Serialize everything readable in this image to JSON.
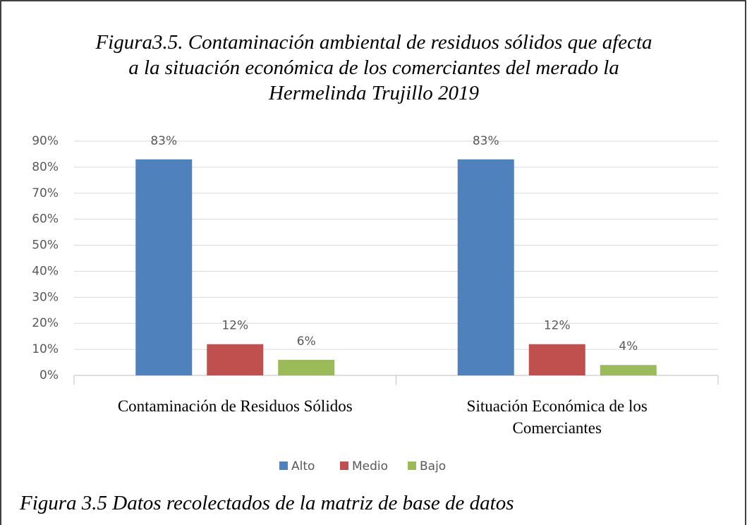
{
  "chart_data": {
    "type": "bar",
    "title": "Figura3.5. Contaminación ambiental de residuos sólidos que afecta a la situación económica de los comerciantes del merado la Hermelinda Trujillo 2019",
    "caption": "Figura 3.5 Datos recolectados de la matriz de base de datos",
    "categories": [
      "Contaminación de Residuos Sólidos",
      "Situación Económica de los Comerciantes"
    ],
    "series": [
      {
        "name": "Alto",
        "color": "#4f81bd",
        "values": [
          83,
          83
        ],
        "value_labels": [
          "83%",
          "83%"
        ]
      },
      {
        "name": "Medio",
        "color": "#c0504d",
        "values": [
          12,
          12
        ],
        "value_labels": [
          "12%",
          "12%"
        ]
      },
      {
        "name": "Bajo",
        "color": "#9bbb59",
        "values": [
          6,
          4
        ],
        "value_labels": [
          "6%",
          "4%"
        ]
      }
    ],
    "ylim": [
      0,
      90
    ],
    "yticks": [
      {
        "value": 0,
        "label": "0%"
      },
      {
        "value": 10,
        "label": "10%"
      },
      {
        "value": 20,
        "label": "20%"
      },
      {
        "value": 30,
        "label": "30%"
      },
      {
        "value": 40,
        "label": "40%"
      },
      {
        "value": 50,
        "label": "50%"
      },
      {
        "value": 60,
        "label": "60%"
      },
      {
        "value": 70,
        "label": "70%"
      },
      {
        "value": 80,
        "label": "80%"
      },
      {
        "value": 90,
        "label": "90%"
      }
    ],
    "grid": true,
    "legend": "bottom"
  }
}
